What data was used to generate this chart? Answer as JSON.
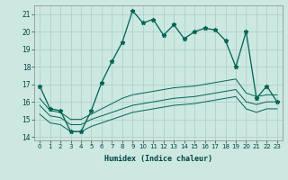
{
  "title": "",
  "xlabel": "Humidex (Indice chaleur)",
  "xlim": [
    -0.5,
    23.5
  ],
  "ylim": [
    13.8,
    21.5
  ],
  "xticks": [
    0,
    1,
    2,
    3,
    4,
    5,
    6,
    7,
    8,
    9,
    10,
    11,
    12,
    13,
    14,
    15,
    16,
    17,
    18,
    19,
    20,
    21,
    22,
    23
  ],
  "yticks": [
    14,
    15,
    16,
    17,
    18,
    19,
    20,
    21
  ],
  "bg_color": "#cce8e0",
  "line_color": "#006655",
  "grid_color": "#aacccc",
  "main_line": {
    "x": [
      0,
      1,
      2,
      3,
      4,
      5,
      6,
      7,
      8,
      9,
      10,
      11,
      12,
      13,
      14,
      15,
      16,
      17,
      18,
      19,
      20,
      21,
      22,
      23
    ],
    "y": [
      16.9,
      15.6,
      15.5,
      14.3,
      14.3,
      15.5,
      17.1,
      18.3,
      19.4,
      21.2,
      20.5,
      20.7,
      19.8,
      20.4,
      19.6,
      20.0,
      20.2,
      20.1,
      19.5,
      18.0,
      20.0,
      16.2,
      16.9,
      16.0
    ]
  },
  "line2": {
    "x": [
      0,
      1,
      2,
      3,
      4,
      5,
      6,
      7,
      8,
      9,
      10,
      11,
      12,
      13,
      14,
      15,
      16,
      17,
      18,
      19,
      20,
      21,
      22,
      23
    ],
    "y": [
      16.2,
      15.5,
      15.4,
      15.0,
      15.0,
      15.3,
      15.6,
      15.9,
      16.2,
      16.4,
      16.5,
      16.6,
      16.7,
      16.8,
      16.85,
      16.9,
      17.0,
      17.1,
      17.2,
      17.3,
      16.5,
      16.3,
      16.4,
      16.4
    ]
  },
  "line3": {
    "x": [
      0,
      1,
      2,
      3,
      4,
      5,
      6,
      7,
      8,
      9,
      10,
      11,
      12,
      13,
      14,
      15,
      16,
      17,
      18,
      19,
      20,
      21,
      22,
      23
    ],
    "y": [
      15.8,
      15.2,
      15.1,
      14.7,
      14.7,
      15.0,
      15.2,
      15.4,
      15.6,
      15.8,
      15.9,
      16.0,
      16.1,
      16.2,
      16.25,
      16.3,
      16.4,
      16.5,
      16.6,
      16.7,
      16.0,
      15.85,
      16.0,
      16.0
    ]
  },
  "line4": {
    "x": [
      0,
      1,
      2,
      3,
      4,
      5,
      6,
      7,
      8,
      9,
      10,
      11,
      12,
      13,
      14,
      15,
      16,
      17,
      18,
      19,
      20,
      21,
      22,
      23
    ],
    "y": [
      15.3,
      14.8,
      14.7,
      14.3,
      14.3,
      14.6,
      14.8,
      15.0,
      15.2,
      15.4,
      15.5,
      15.6,
      15.7,
      15.8,
      15.85,
      15.9,
      16.0,
      16.1,
      16.2,
      16.3,
      15.6,
      15.4,
      15.6,
      15.6
    ]
  }
}
